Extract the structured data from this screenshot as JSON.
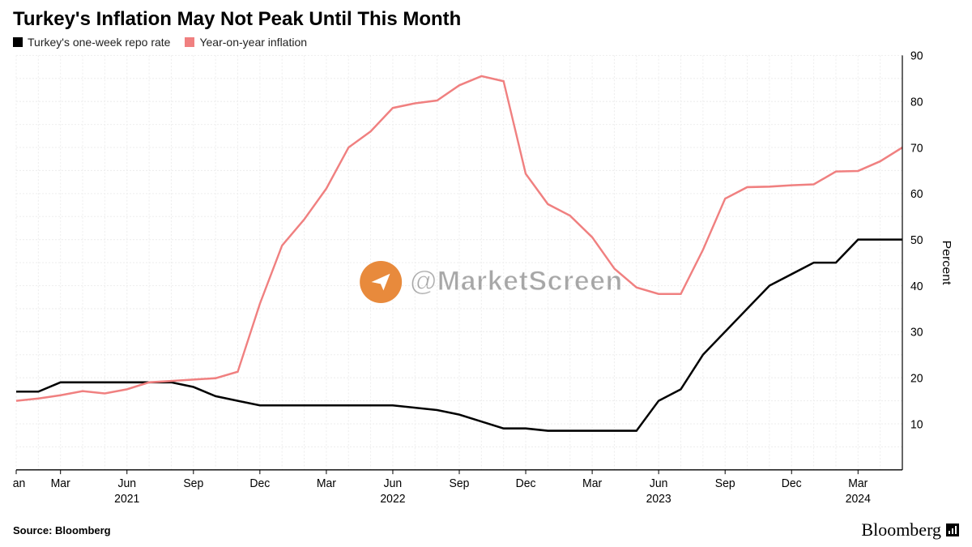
{
  "title": {
    "text": "Turkey's Inflation May Not Peak Until This Month",
    "fontsize": 24,
    "color": "#000000"
  },
  "legend": {
    "items": [
      {
        "label": "Turkey's one-week repo rate",
        "color": "#000000"
      },
      {
        "label": "Year-on-year inflation",
        "color": "#f08080"
      }
    ]
  },
  "chart": {
    "type": "line",
    "background_color": "#ffffff",
    "grid": {
      "on": true,
      "color": "#eeeeee",
      "dash": "2,2"
    },
    "plot_border_color": "#000000",
    "axes": {
      "y": {
        "side": "right",
        "title": "Percent",
        "ylim": [
          0,
          90
        ],
        "ticks": [
          10,
          20,
          30,
          40,
          50,
          60,
          70,
          80,
          90
        ],
        "tick_fontsize": 14,
        "title_fontsize": 15
      },
      "x": {
        "domain_index": [
          0,
          40
        ],
        "major_labels": [
          {
            "i": 0,
            "label": "Jan"
          },
          {
            "i": 2,
            "label": "Mar"
          },
          {
            "i": 5,
            "label": "Jun"
          },
          {
            "i": 8,
            "label": "Sep"
          },
          {
            "i": 11,
            "label": "Dec"
          },
          {
            "i": 14,
            "label": "Mar"
          },
          {
            "i": 17,
            "label": "Jun"
          },
          {
            "i": 20,
            "label": "Sep"
          },
          {
            "i": 23,
            "label": "Dec"
          },
          {
            "i": 26,
            "label": "Mar"
          },
          {
            "i": 29,
            "label": "Jun"
          },
          {
            "i": 32,
            "label": "Sep"
          },
          {
            "i": 35,
            "label": "Dec"
          },
          {
            "i": 38,
            "label": "Mar"
          }
        ],
        "year_labels": [
          {
            "i": 5,
            "label": "2021"
          },
          {
            "i": 17,
            "label": "2022"
          },
          {
            "i": 29,
            "label": "2023"
          },
          {
            "i": 38,
            "label": "2024"
          }
        ],
        "tick_fontsize": 14
      }
    },
    "series": [
      {
        "name": "repo",
        "color": "#000000",
        "line_width": 2.4,
        "values": [
          17,
          17,
          19,
          19,
          19,
          19,
          19,
          19,
          18,
          16,
          15,
          14,
          14,
          14,
          14,
          14,
          14,
          14,
          13.5,
          13,
          12,
          10.5,
          9,
          9,
          8.5,
          8.5,
          8.5,
          8.5,
          8.5,
          15,
          17.5,
          25,
          30,
          35,
          40,
          42.5,
          45,
          45,
          50,
          50,
          50
        ]
      },
      {
        "name": "inflation",
        "color": "#f08080",
        "line_width": 2.4,
        "values": [
          15,
          15.5,
          16.2,
          17.1,
          16.6,
          17.5,
          19,
          19.3,
          19.6,
          19.9,
          21.3,
          36.1,
          48.7,
          54.4,
          61.1,
          70,
          73.5,
          78.6,
          79.6,
          80.2,
          83.5,
          85.5,
          84.4,
          64.3,
          57.7,
          55.2,
          50.5,
          43.7,
          39.6,
          38.2,
          38.2,
          47.8,
          58.9,
          61.4,
          61.5,
          61.8,
          62,
          64.8,
          64.9,
          67,
          70
        ]
      }
    ]
  },
  "watermark": {
    "text": "@MarketScreen",
    "circle_color": "#e88a3c",
    "icon": "paper-plane"
  },
  "footer": {
    "source_label": "Source: Bloomberg",
    "brand": "Bloomberg"
  }
}
